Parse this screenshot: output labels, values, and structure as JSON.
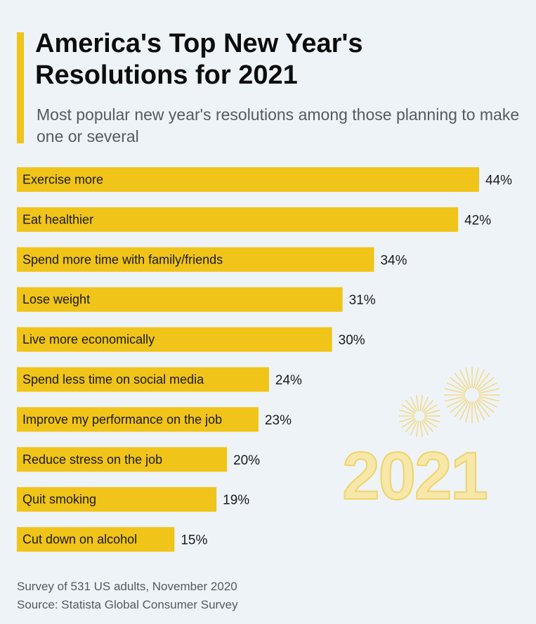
{
  "header": {
    "title": "America's Top New Year's Resolutions for 2021",
    "subtitle": "Most popular new year's resolutions among those planning to make one or several"
  },
  "decoration": {
    "text": "2021"
  },
  "footer": {
    "survey": "Survey of 531 US adults, November 2020",
    "source": "Source: Statista Global Consumer Survey"
  },
  "colors": {
    "bar": "#f0c419",
    "background": "#eef3f8",
    "accent": "#f0c419"
  },
  "chart_data": {
    "type": "bar",
    "orientation": "horizontal",
    "title": "America's Top New Year's Resolutions for 2021",
    "categories": [
      "Exercise more",
      "Eat healthier",
      "Spend more time with family/friends",
      "Lose weight",
      "Live more economically",
      "Spend less time on social media",
      "Improve my performance on the job",
      "Reduce stress on the job",
      "Quit smoking",
      "Cut down on alcohol"
    ],
    "values": [
      44,
      42,
      34,
      31,
      30,
      24,
      23,
      20,
      19,
      15
    ],
    "value_labels": [
      "44%",
      "42%",
      "34%",
      "31%",
      "30%",
      "24%",
      "23%",
      "20%",
      "19%",
      "15%"
    ],
    "unit": "%",
    "xlim": [
      0,
      44
    ],
    "grid": false,
    "legend": false
  }
}
